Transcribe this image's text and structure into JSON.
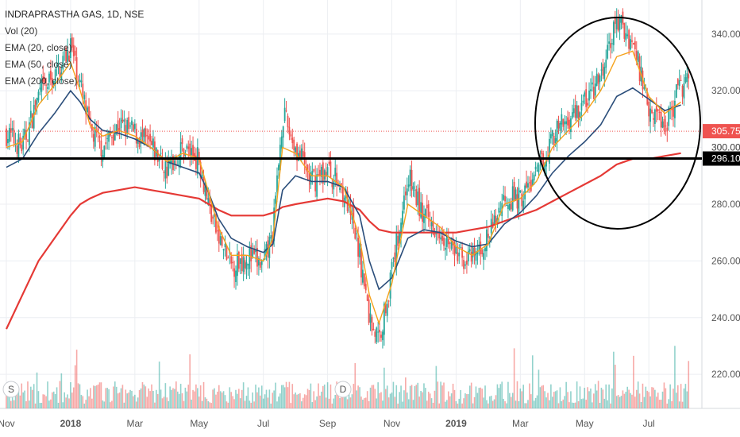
{
  "header": {
    "title": "INDRAPRASTHA GAS, 1D, NSE",
    "indicators": [
      "Vol (20)",
      "EMA (20, close)",
      "EMA (50, close)",
      "EMA (200, close)"
    ]
  },
  "chart_data": {
    "type": "candlestick",
    "symbol": "INDRAPRASTHA GAS",
    "interval": "1D",
    "exchange": "NSE",
    "ylim": [
      208,
      352
    ],
    "y_ticks": [
      220,
      240,
      260,
      280,
      300,
      320,
      340
    ],
    "x_ticks": [
      "Nov",
      "2018",
      "Mar",
      "May",
      "Jul",
      "Sep",
      "Nov",
      "2019",
      "Mar",
      "May",
      "Jul"
    ],
    "x_tick_months": [
      0,
      2,
      4,
      6,
      8,
      10,
      12,
      14,
      16,
      18,
      20
    ],
    "x_range_months": [
      0,
      21.8
    ],
    "last_price": "305.75",
    "horizontal_line": {
      "value": 296.1,
      "label": "296.10"
    },
    "hidden_label": "300.00",
    "close_series_monthly": {
      "months": [
        0,
        0.5,
        1,
        1.5,
        2,
        2.3,
        2.6,
        3,
        3.5,
        4,
        4.5,
        5,
        5.5,
        6,
        6.3,
        6.6,
        7,
        7.5,
        8,
        8.3,
        8.6,
        9,
        9.5,
        10,
        10.5,
        11,
        11.3,
        11.6,
        12,
        12.5,
        13,
        13.5,
        14,
        14.5,
        15,
        15.5,
        16,
        16.5,
        17,
        17.5,
        18,
        18.5,
        19,
        19.5,
        20,
        20.5,
        21
      ],
      "values": [
        305,
        300,
        318,
        325,
        336,
        322,
        306,
        300,
        308,
        305,
        300,
        292,
        300,
        296,
        280,
        268,
        258,
        262,
        258,
        270,
        312,
        300,
        288,
        292,
        285,
        262,
        240,
        232,
        256,
        290,
        275,
        272,
        262,
        260,
        268,
        283,
        282,
        290,
        304,
        310,
        316,
        324,
        345,
        337,
        315,
        308,
        322
      ]
    },
    "ema20_monthly": [
      300,
      302,
      315,
      322,
      330,
      320,
      308,
      304,
      306,
      304,
      300,
      295,
      298,
      296,
      284,
      272,
      262,
      262,
      260,
      268,
      300,
      298,
      290,
      290,
      286,
      268,
      248,
      238,
      252,
      280,
      276,
      272,
      265,
      262,
      266,
      280,
      282,
      288,
      300,
      306,
      312,
      320,
      332,
      334,
      318,
      312,
      316
    ],
    "ema50_monthly": [
      293,
      296,
      305,
      312,
      320,
      316,
      310,
      306,
      305,
      303,
      300,
      295,
      293,
      291,
      284,
      275,
      268,
      265,
      263,
      266,
      285,
      290,
      288,
      288,
      286,
      276,
      260,
      250,
      254,
      268,
      271,
      270,
      267,
      265,
      266,
      273,
      277,
      283,
      291,
      297,
      302,
      308,
      318,
      321,
      317,
      313,
      315
    ],
    "ema200_monthly": [
      236,
      248,
      260,
      268,
      276,
      280,
      282,
      284,
      285,
      286,
      285,
      284,
      283,
      282,
      280,
      278,
      276,
      276,
      276,
      277,
      279,
      280,
      281,
      282,
      281,
      278,
      274,
      271,
      270,
      270,
      270,
      270,
      270,
      271,
      272,
      274,
      276,
      278,
      281,
      284,
      287,
      290,
      294,
      296,
      296,
      297,
      298
    ]
  },
  "markers": {
    "split": "S",
    "dividend": "D"
  },
  "colors": {
    "up": "#26a69a",
    "down": "#ef5350",
    "ema20": "#f5a21b",
    "ema50": "#2a4d7a",
    "ema200": "#e53935",
    "grid": "#eceef2",
    "hline": "#000000"
  }
}
